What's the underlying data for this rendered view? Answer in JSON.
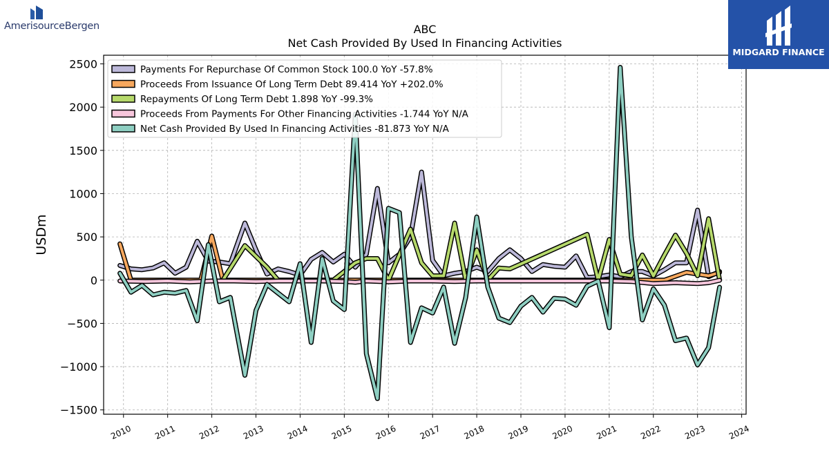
{
  "brands": {
    "left": {
      "name": "AmerisourceBergen",
      "icon": "amerisourcebergen-logo-icon"
    },
    "right": {
      "name": "MIDGARD FINANCE",
      "icon": "midgard-finance-logo-icon",
      "background": "#2452a8"
    }
  },
  "chart_data": {
    "type": "line",
    "title": "ABC",
    "subtitle": "Net Cash Provided By Used In Financing Activities",
    "xlabel": "",
    "ylabel": "USDm",
    "xlim": [
      2009.55,
      2024.1
    ],
    "ylim": [
      -1550,
      2600
    ],
    "x_ticks": [
      "2010",
      "2011",
      "2012",
      "2013",
      "2014",
      "2015",
      "2016",
      "2017",
      "2018",
      "2019",
      "2020",
      "2021",
      "2022",
      "2023",
      "2024"
    ],
    "y_ticks": [
      -1500,
      -1000,
      -500,
      0,
      500,
      1000,
      1500,
      2000,
      2500
    ],
    "grid": true,
    "legend_position": "top-left",
    "series": [
      {
        "name": "Payments For Repurchase Of Common Stock  100.0 YoY -57.8%",
        "color": "#bcb8d9",
        "points": [
          [
            2009.92,
            170
          ],
          [
            2010.17,
            130
          ],
          [
            2010.42,
            120
          ],
          [
            2010.67,
            140
          ],
          [
            2010.92,
            200
          ],
          [
            2011.17,
            80
          ],
          [
            2011.42,
            150
          ],
          [
            2011.67,
            450
          ],
          [
            2011.92,
            220
          ],
          [
            2012.17,
            210
          ],
          [
            2012.42,
            190
          ],
          [
            2012.75,
            660
          ],
          [
            2013.0,
            350
          ],
          [
            2013.25,
            70
          ],
          [
            2013.5,
            130
          ],
          [
            2013.75,
            100
          ],
          [
            2014.0,
            60
          ],
          [
            2014.25,
            240
          ],
          [
            2014.5,
            320
          ],
          [
            2014.75,
            210
          ],
          [
            2015.0,
            300
          ],
          [
            2015.25,
            150
          ],
          [
            2015.5,
            300
          ],
          [
            2015.75,
            1060
          ],
          [
            2016.0,
            200
          ],
          [
            2016.25,
            300
          ],
          [
            2016.5,
            500
          ],
          [
            2016.75,
            1250
          ],
          [
            2017.0,
            230
          ],
          [
            2017.25,
            50
          ],
          [
            2017.5,
            80
          ],
          [
            2017.75,
            100
          ],
          [
            2018.0,
            150
          ],
          [
            2018.25,
            100
          ],
          [
            2018.5,
            250
          ],
          [
            2018.75,
            350
          ],
          [
            2019.0,
            250
          ],
          [
            2019.25,
            100
          ],
          [
            2019.5,
            180
          ],
          [
            2019.75,
            160
          ],
          [
            2020.0,
            150
          ],
          [
            2020.25,
            280
          ],
          [
            2020.5,
            30
          ],
          [
            2020.75,
            40
          ],
          [
            2021.0,
            60
          ],
          [
            2021.25,
            40
          ],
          [
            2021.5,
            100
          ],
          [
            2021.75,
            100
          ],
          [
            2022.0,
            50
          ],
          [
            2022.25,
            120
          ],
          [
            2022.5,
            200
          ],
          [
            2022.75,
            200
          ],
          [
            2023.0,
            810
          ],
          [
            2023.25,
            40
          ],
          [
            2023.5,
            100
          ]
        ]
      },
      {
        "name": "Proceeds From Issuance Of Long Term Debt  89.414 YoY +202.0%",
        "color": "#f7a85e",
        "points": [
          [
            2009.92,
            420
          ],
          [
            2010.17,
            0
          ],
          [
            2011.75,
            0
          ],
          [
            2012.0,
            510
          ],
          [
            2012.25,
            0
          ],
          [
            2021.75,
            0
          ],
          [
            2022.25,
            0
          ],
          [
            2022.75,
            90
          ],
          [
            2023.25,
            50
          ],
          [
            2023.5,
            89
          ]
        ]
      },
      {
        "name": "Repayments Of Long Term Debt  1.898 YoY -99.3%",
        "color": "#b6d96b",
        "points": [
          [
            2012.25,
            0
          ],
          [
            2012.75,
            400
          ],
          [
            2013.25,
            150
          ],
          [
            2013.5,
            0
          ],
          [
            2014.75,
            0
          ],
          [
            2015.25,
            200
          ],
          [
            2015.5,
            250
          ],
          [
            2015.75,
            250
          ],
          [
            2016.0,
            0
          ],
          [
            2016.5,
            590
          ],
          [
            2016.75,
            200
          ],
          [
            2017.0,
            50
          ],
          [
            2017.25,
            50
          ],
          [
            2017.5,
            660
          ],
          [
            2017.75,
            0
          ],
          [
            2018.0,
            350
          ],
          [
            2018.25,
            0
          ],
          [
            2018.5,
            140
          ],
          [
            2018.75,
            130
          ],
          [
            2020.5,
            530
          ],
          [
            2020.75,
            0
          ],
          [
            2021.0,
            470
          ],
          [
            2021.25,
            70
          ],
          [
            2021.5,
            50
          ],
          [
            2021.75,
            290
          ],
          [
            2022.0,
            50
          ],
          [
            2022.25,
            290
          ],
          [
            2022.5,
            520
          ],
          [
            2022.75,
            310
          ],
          [
            2023.0,
            50
          ],
          [
            2023.25,
            710
          ],
          [
            2023.5,
            2
          ]
        ]
      },
      {
        "name": "Proceeds From Payments For Other Financing Activities  -1.744 YoY N/A",
        "color": "#f7c6dc",
        "points": [
          [
            2009.92,
            -10
          ],
          [
            2010.5,
            -15
          ],
          [
            2011.0,
            -10
          ],
          [
            2011.5,
            -20
          ],
          [
            2012.0,
            -10
          ],
          [
            2012.5,
            -10
          ],
          [
            2013.0,
            -15
          ],
          [
            2013.5,
            -10
          ],
          [
            2014.0,
            -10
          ],
          [
            2014.5,
            -10
          ],
          [
            2015.0,
            -15
          ],
          [
            2015.25,
            -25
          ],
          [
            2015.5,
            -10
          ],
          [
            2016.0,
            -20
          ],
          [
            2016.5,
            -10
          ],
          [
            2017.0,
            -10
          ],
          [
            2017.5,
            -15
          ],
          [
            2018.0,
            -10
          ],
          [
            2018.5,
            -10
          ],
          [
            2019.0,
            -10
          ],
          [
            2019.5,
            -10
          ],
          [
            2020.0,
            -10
          ],
          [
            2020.5,
            -10
          ],
          [
            2021.0,
            -10
          ],
          [
            2021.5,
            -15
          ],
          [
            2022.0,
            -40
          ],
          [
            2022.5,
            -30
          ],
          [
            2023.0,
            -40
          ],
          [
            2023.25,
            -30
          ],
          [
            2023.5,
            -2
          ]
        ]
      },
      {
        "name": "Net Cash Provided By Used In Financing Activities  -81.873 YoY N/A",
        "color": "#8ecfc2",
        "points": [
          [
            2009.92,
            80
          ],
          [
            2010.17,
            -140
          ],
          [
            2010.42,
            -60
          ],
          [
            2010.67,
            -170
          ],
          [
            2010.92,
            -140
          ],
          [
            2011.17,
            -150
          ],
          [
            2011.42,
            -120
          ],
          [
            2011.67,
            -470
          ],
          [
            2011.92,
            410
          ],
          [
            2012.17,
            -250
          ],
          [
            2012.42,
            -200
          ],
          [
            2012.75,
            -1100
          ],
          [
            2013.0,
            -350
          ],
          [
            2013.25,
            -50
          ],
          [
            2013.5,
            -150
          ],
          [
            2013.75,
            -250
          ],
          [
            2014.0,
            190
          ],
          [
            2014.25,
            -720
          ],
          [
            2014.5,
            250
          ],
          [
            2014.75,
            -240
          ],
          [
            2015.0,
            -340
          ],
          [
            2015.25,
            1920
          ],
          [
            2015.5,
            -850
          ],
          [
            2015.75,
            -1370
          ],
          [
            2016.0,
            830
          ],
          [
            2016.25,
            780
          ],
          [
            2016.5,
            -720
          ],
          [
            2016.75,
            -320
          ],
          [
            2017.0,
            -380
          ],
          [
            2017.25,
            -80
          ],
          [
            2017.5,
            -730
          ],
          [
            2017.75,
            -200
          ],
          [
            2018.0,
            730
          ],
          [
            2018.25,
            -80
          ],
          [
            2018.5,
            -440
          ],
          [
            2018.75,
            -490
          ],
          [
            2019.0,
            -300
          ],
          [
            2019.25,
            -200
          ],
          [
            2019.5,
            -370
          ],
          [
            2019.75,
            -210
          ],
          [
            2020.0,
            -220
          ],
          [
            2020.25,
            -290
          ],
          [
            2020.5,
            -70
          ],
          [
            2020.75,
            -10
          ],
          [
            2021.0,
            -550
          ],
          [
            2021.25,
            2460
          ],
          [
            2021.5,
            500
          ],
          [
            2021.75,
            -460
          ],
          [
            2022.0,
            -100
          ],
          [
            2022.25,
            -290
          ],
          [
            2022.5,
            -700
          ],
          [
            2022.75,
            -670
          ],
          [
            2023.0,
            -980
          ],
          [
            2023.25,
            -780
          ],
          [
            2023.5,
            -82
          ]
        ]
      }
    ]
  }
}
